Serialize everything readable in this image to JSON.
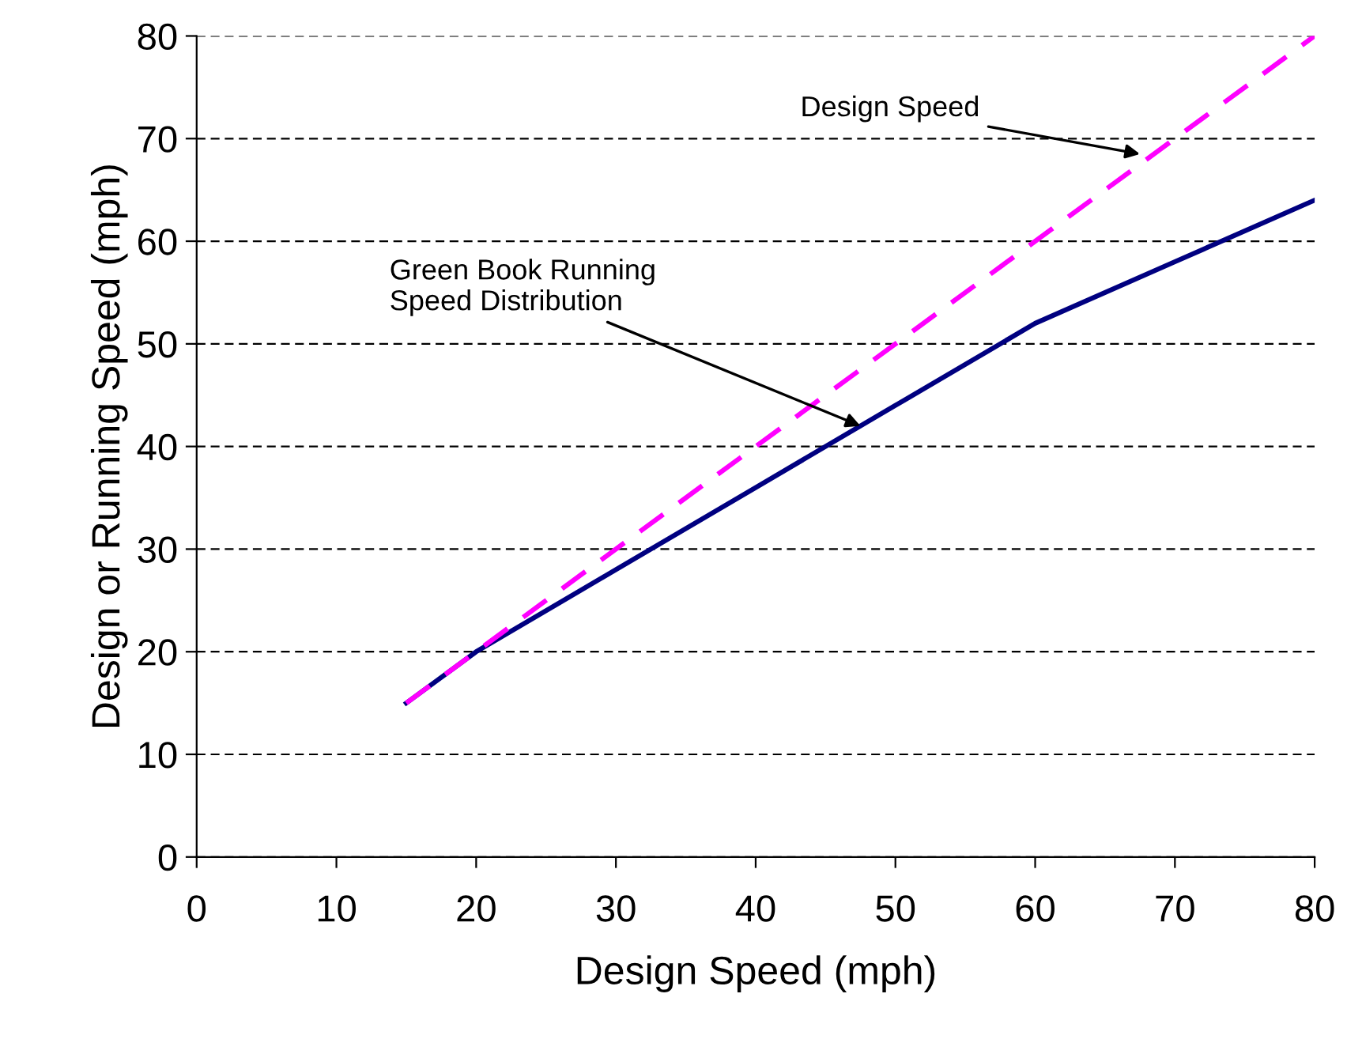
{
  "chart_data": {
    "type": "line",
    "xlabel": "Design Speed (mph)",
    "ylabel": "Design or Running Speed (mph)",
    "xlim": [
      0,
      80
    ],
    "ylim": [
      0,
      80
    ],
    "xticks": [
      0,
      10,
      20,
      30,
      40,
      50,
      60,
      70,
      80
    ],
    "yticks": [
      0,
      10,
      20,
      30,
      40,
      50,
      60,
      70,
      80
    ],
    "grid": "y",
    "legend": false,
    "series": [
      {
        "color": "#000080",
        "line_style": "solid",
        "x": [
          15,
          20,
          30,
          40,
          50,
          60,
          70,
          80
        ],
        "values": [
          15,
          20,
          28,
          36,
          44,
          52,
          58,
          64
        ]
      },
      {
        "color": "#ff00ff",
        "line_style": "dashed",
        "x": [
          15,
          80
        ],
        "values": [
          15,
          80
        ]
      }
    ],
    "annotations": [
      {
        "text": "Design Speed",
        "x": 67.5,
        "y": 68.5
      },
      {
        "text": "Green Book Running\nSpeed Distribution",
        "x": 47.5,
        "y": 42
      }
    ]
  }
}
